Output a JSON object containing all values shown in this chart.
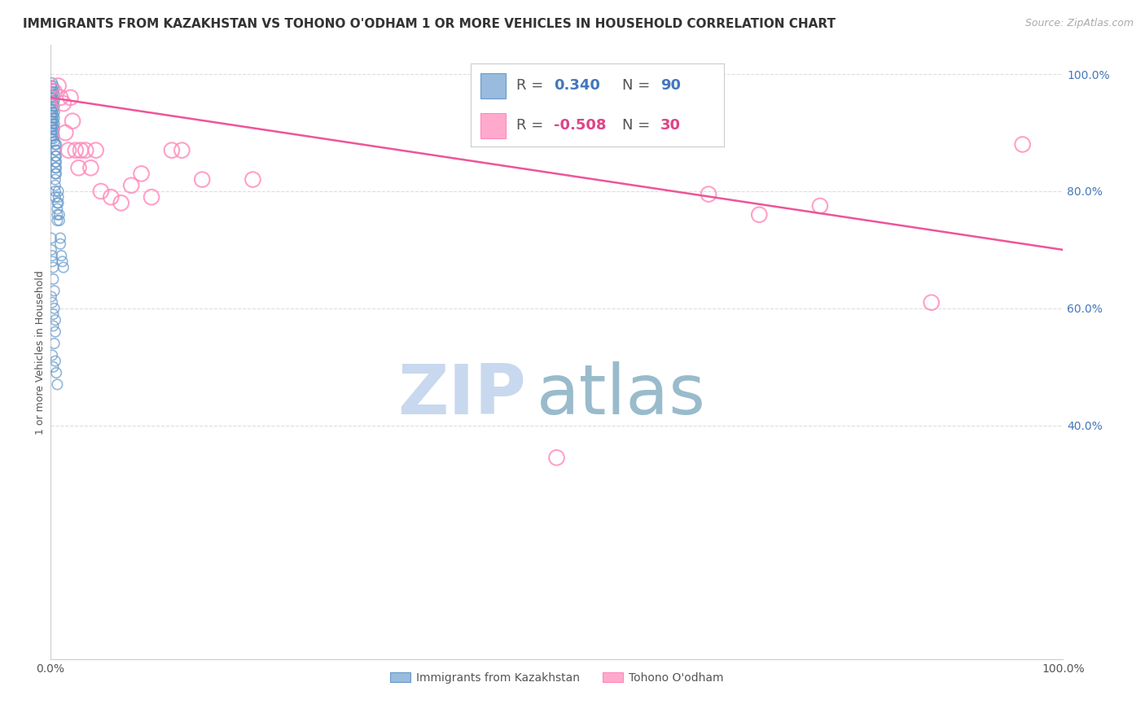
{
  "title": "IMMIGRANTS FROM KAZAKHSTAN VS TOHONO O'ODHAM 1 OR MORE VEHICLES IN HOUSEHOLD CORRELATION CHART",
  "source": "Source: ZipAtlas.com",
  "ylabel": "1 or more Vehicles in Household",
  "legend_blue_label": "Immigrants from Kazakhstan",
  "legend_pink_label": "Tohono O'odham",
  "blue_r_val": "0.340",
  "blue_n_val": "90",
  "pink_r_val": "-0.508",
  "pink_n_val": "30",
  "blue_color": "#99BBDD",
  "blue_edge_color": "#6699CC",
  "pink_color": "#FFAACC",
  "pink_edge_color": "#FF88BB",
  "trend_pink_color": "#EE5599",
  "watermark_zip": "ZIP",
  "watermark_atlas": "atlas",
  "watermark_color_zip": "#C8D8EE",
  "watermark_color_atlas": "#99BBCC",
  "blue_dots_x": [
    0.001,
    0.001,
    0.001,
    0.001,
    0.001,
    0.001,
    0.001,
    0.001,
    0.001,
    0.001,
    0.002,
    0.002,
    0.002,
    0.002,
    0.002,
    0.002,
    0.002,
    0.002,
    0.002,
    0.002,
    0.003,
    0.003,
    0.003,
    0.003,
    0.003,
    0.003,
    0.003,
    0.003,
    0.003,
    0.003,
    0.004,
    0.004,
    0.004,
    0.004,
    0.004,
    0.004,
    0.004,
    0.004,
    0.004,
    0.004,
    0.005,
    0.005,
    0.005,
    0.005,
    0.005,
    0.005,
    0.005,
    0.005,
    0.005,
    0.005,
    0.006,
    0.006,
    0.006,
    0.006,
    0.006,
    0.006,
    0.007,
    0.007,
    0.007,
    0.007,
    0.008,
    0.008,
    0.008,
    0.009,
    0.009,
    0.01,
    0.01,
    0.011,
    0.012,
    0.013,
    0.001,
    0.001,
    0.002,
    0.002,
    0.003,
    0.003,
    0.004,
    0.004,
    0.005,
    0.005,
    0.001,
    0.002,
    0.003,
    0.003,
    0.004,
    0.005,
    0.006,
    0.007,
    0.002,
    0.003
  ],
  "blue_dots_y": [
    0.98,
    0.97,
    0.96,
    0.95,
    0.94,
    0.93,
    0.92,
    0.91,
    0.9,
    0.89,
    0.985,
    0.975,
    0.965,
    0.955,
    0.945,
    0.935,
    0.925,
    0.915,
    0.905,
    0.895,
    0.98,
    0.97,
    0.96,
    0.95,
    0.94,
    0.93,
    0.92,
    0.91,
    0.9,
    0.89,
    0.975,
    0.965,
    0.955,
    0.945,
    0.935,
    0.925,
    0.915,
    0.905,
    0.895,
    0.885,
    0.88,
    0.87,
    0.86,
    0.85,
    0.84,
    0.83,
    0.82,
    0.81,
    0.8,
    0.79,
    0.88,
    0.87,
    0.86,
    0.85,
    0.84,
    0.83,
    0.78,
    0.77,
    0.76,
    0.75,
    0.8,
    0.79,
    0.78,
    0.76,
    0.75,
    0.72,
    0.71,
    0.69,
    0.68,
    0.67,
    0.72,
    0.7,
    0.69,
    0.68,
    0.67,
    0.65,
    0.63,
    0.6,
    0.58,
    0.56,
    0.62,
    0.61,
    0.59,
    0.57,
    0.54,
    0.51,
    0.49,
    0.47,
    0.52,
    0.5
  ],
  "pink_dots_x": [
    0.004,
    0.008,
    0.01,
    0.013,
    0.015,
    0.018,
    0.02,
    0.022,
    0.025,
    0.028,
    0.03,
    0.035,
    0.04,
    0.045,
    0.05,
    0.06,
    0.07,
    0.08,
    0.09,
    0.1,
    0.12,
    0.13,
    0.15,
    0.2,
    0.5,
    0.65,
    0.7,
    0.76,
    0.87,
    0.96
  ],
  "pink_dots_y": [
    0.97,
    0.98,
    0.96,
    0.95,
    0.9,
    0.87,
    0.96,
    0.92,
    0.87,
    0.84,
    0.87,
    0.87,
    0.84,
    0.87,
    0.8,
    0.79,
    0.78,
    0.81,
    0.83,
    0.79,
    0.87,
    0.87,
    0.82,
    0.82,
    0.345,
    0.795,
    0.76,
    0.775,
    0.61,
    0.88
  ],
  "pink_trend_x": [
    0.0,
    1.0
  ],
  "pink_trend_y": [
    0.96,
    0.7
  ],
  "xlim": [
    0.0,
    1.0
  ],
  "ylim": [
    0.0,
    1.05
  ],
  "right_ytick_vals": [
    0.4,
    0.6,
    0.8,
    1.0
  ],
  "right_ytick_labels": [
    "40.0%",
    "60.0%",
    "80.0%",
    "100.0%"
  ],
  "grid_color": "#DDDDDD",
  "title_fontsize": 11,
  "source_fontsize": 9,
  "legend_fontsize": 13,
  "watermark_fontsize_zip": 62,
  "watermark_fontsize_atlas": 62,
  "blue_label_color": "#4477BB",
  "pink_label_color": "#DD4488"
}
